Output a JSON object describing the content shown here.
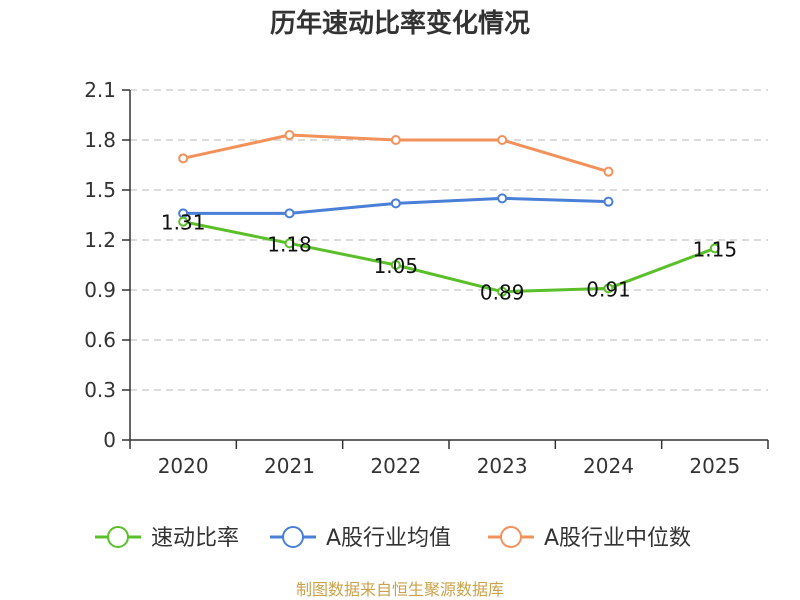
{
  "chart_data": {
    "type": "line",
    "title": "历年速动比率变化情况",
    "categories": [
      "2020",
      "2021",
      "2022",
      "2023",
      "2024",
      "2025"
    ],
    "ylim": [
      0,
      2.1
    ],
    "yticks": [
      "0",
      "0.3",
      "0.6",
      "0.9",
      "1.2",
      "1.5",
      "1.8",
      "2.1"
    ],
    "grid": true,
    "legend_position": "bottom",
    "series": [
      {
        "name": "速动比率",
        "color": "#5bbf2a",
        "values": [
          1.31,
          1.18,
          1.05,
          0.89,
          0.91,
          1.15
        ],
        "labels": [
          "1.31",
          "1.18",
          "1.05",
          "0.89",
          "0.91",
          "1.15"
        ]
      },
      {
        "name": "A股行业均值",
        "color": "#4a7fd8",
        "values": [
          1.36,
          1.36,
          1.42,
          1.45,
          1.43,
          null
        ]
      },
      {
        "name": "A股行业中位数",
        "color": "#f2915a",
        "values": [
          1.69,
          1.83,
          1.8,
          1.8,
          1.61,
          null
        ]
      }
    ]
  },
  "footer": {
    "source": "制图数据来自恒生聚源数据库"
  }
}
